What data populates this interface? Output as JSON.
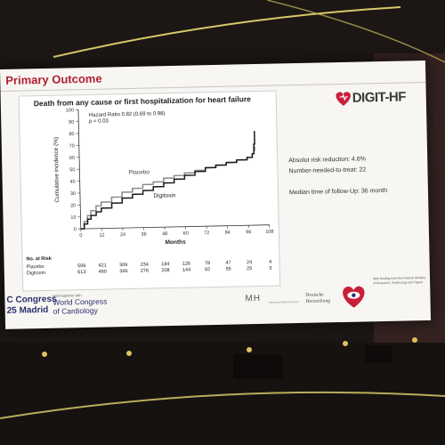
{
  "slide": {
    "title": "Primary Outcome",
    "logo_text": "DIGIT-HF"
  },
  "chart_data": {
    "type": "line",
    "title": "Death from any cause or first hospitalization for heart failure",
    "xlabel": "Months",
    "ylabel": "Cumulative incidence (%)",
    "xlim": [
      0,
      108
    ],
    "ylim": [
      0,
      100
    ],
    "x_ticks": [
      0,
      12,
      24,
      36,
      48,
      60,
      72,
      84,
      96,
      108
    ],
    "y_ticks": [
      0,
      10,
      20,
      30,
      40,
      50,
      60,
      70,
      80,
      90,
      100
    ],
    "annotation": [
      "Hazard Ratio 0.82 (0.69  to  0.98)",
      "p = 0.03"
    ],
    "series": [
      {
        "name": "Placebo",
        "color": "#8a8a8a",
        "x": [
          0,
          2,
          4,
          6,
          9,
          12,
          18,
          24,
          30,
          36,
          42,
          48,
          54,
          60,
          66,
          72,
          78,
          84,
          90,
          96,
          99,
          100,
          100.5
        ],
        "values": [
          0,
          6,
          11,
          15,
          19,
          22,
          26,
          30,
          33,
          36,
          38,
          41,
          43,
          45,
          47,
          49,
          51,
          53,
          55,
          57,
          60,
          63,
          66
        ]
      },
      {
        "name": "Digitoxin",
        "color": "#1a1a1a",
        "x": [
          0,
          2,
          4,
          6,
          9,
          12,
          18,
          24,
          30,
          36,
          42,
          48,
          54,
          60,
          66,
          72,
          78,
          84,
          90,
          96,
          99,
          100,
          100.5
        ],
        "values": [
          0,
          4,
          8,
          11,
          14,
          17,
          21,
          25,
          28,
          31,
          34,
          37,
          40,
          43,
          46,
          49,
          51,
          53,
          55,
          57,
          60,
          68,
          79
        ]
      }
    ],
    "at_risk": {
      "label": "No. at Risk",
      "rows": [
        {
          "name": "Placebo",
          "values": [
            "599",
            "421",
            "309",
            "234",
            "184",
            "126",
            "78",
            "47",
            "24",
            "4"
          ]
        },
        {
          "name": "Digitoxin",
          "values": [
            "613",
            "460",
            "346",
            "276",
            "208",
            "144",
            "92",
            "55",
            "25",
            "3"
          ]
        }
      ]
    }
  },
  "stats": {
    "arr": "Absolut risk reduction: 4.6%",
    "nnt": "Number-needed-to-treat: 22",
    "followup": "Median time of follow-Up: 36 month"
  },
  "footer": {
    "congress_a": "C Congress",
    "congress_b": "25 Madrid",
    "wcc_small": "Held together with",
    "wcc_a": "World Congress",
    "wcc_b": "of Cardiology",
    "mh": "MH",
    "mh_sub": "Hannover Medical School",
    "dh_a": "Deutsche",
    "dh_b": "Herzstiftung",
    "funding": "With funding from the Federal Ministry of Research, Technology and Space"
  }
}
